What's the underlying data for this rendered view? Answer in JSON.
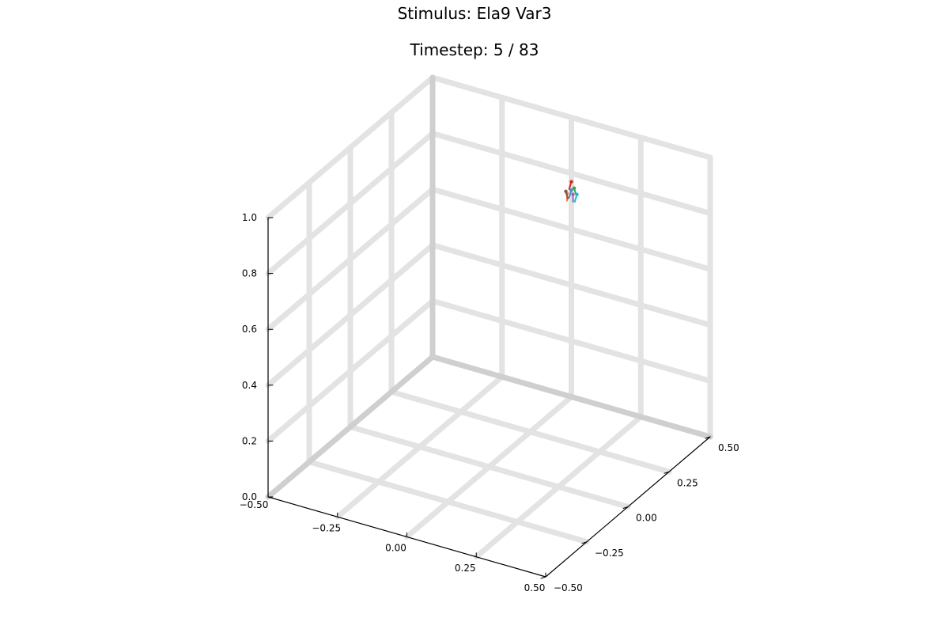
{
  "chart_data": {
    "type": "scatter",
    "title": "Stimulus: Ela9 Var3",
    "subtitle": "Timestep: 5 / 83",
    "x_ticks": [
      "−0.50",
      "−0.25",
      "0.00",
      "0.25",
      "0.50"
    ],
    "y_ticks": [
      "−0.50",
      "−0.25",
      "0.00",
      "0.25",
      "0.50"
    ],
    "z_ticks": [
      "0.0",
      "0.2",
      "0.4",
      "0.6",
      "0.8",
      "1.0"
    ],
    "xlim": [
      -0.5,
      0.5
    ],
    "ylim": [
      -0.5,
      0.5
    ],
    "zlim": [
      0.0,
      1.0
    ],
    "grid": true,
    "legend": "none",
    "series": [
      {
        "color": "#4a8fc4",
        "x": 0.0,
        "y": 0.5,
        "z": 0.74
      },
      {
        "color": "#e8812a",
        "x": -0.01,
        "y": 0.49,
        "z": 0.73
      },
      {
        "color": "#3aa34a",
        "x": 0.01,
        "y": 0.5,
        "z": 0.75
      },
      {
        "color": "#d62728",
        "x": 0.0,
        "y": 0.5,
        "z": 0.77
      },
      {
        "color": "#9467bd",
        "x": 0.0,
        "y": 0.51,
        "z": 0.72
      },
      {
        "color": "#8c564b",
        "x": -0.02,
        "y": 0.5,
        "z": 0.73
      },
      {
        "color": "#17becf",
        "x": 0.02,
        "y": 0.5,
        "z": 0.73
      }
    ],
    "colors": {
      "grid": "#e3e3e3",
      "frame": "#cfcfcf",
      "axis": "#000000"
    }
  }
}
